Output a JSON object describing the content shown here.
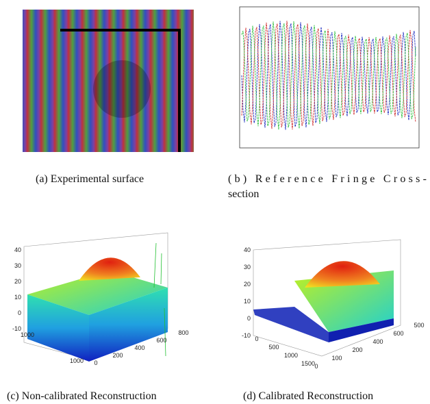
{
  "captions": {
    "a": "(a)  Experimental surface",
    "b": "(b)  Reference  Fringe  Cross-section",
    "c": "(c)  Non-calibrated Reconstruction",
    "d": "(d)  Calibrated Reconstruction"
  },
  "panel_c": {
    "z_ticks": [
      "40",
      "30",
      "20",
      "10",
      "0",
      "-10"
    ],
    "y_ticks": [
      "1000",
      "1000"
    ],
    "x_ticks": [
      "0",
      "200",
      "400",
      "600",
      "800"
    ]
  },
  "panel_d": {
    "z_ticks": [
      "40",
      "30",
      "20",
      "10",
      "0",
      "-10"
    ],
    "y_ticks": [
      "0",
      "500",
      "1000",
      "1500"
    ],
    "x_ticks": [
      "0",
      "100",
      "200",
      "400",
      "600",
      "500"
    ]
  }
}
